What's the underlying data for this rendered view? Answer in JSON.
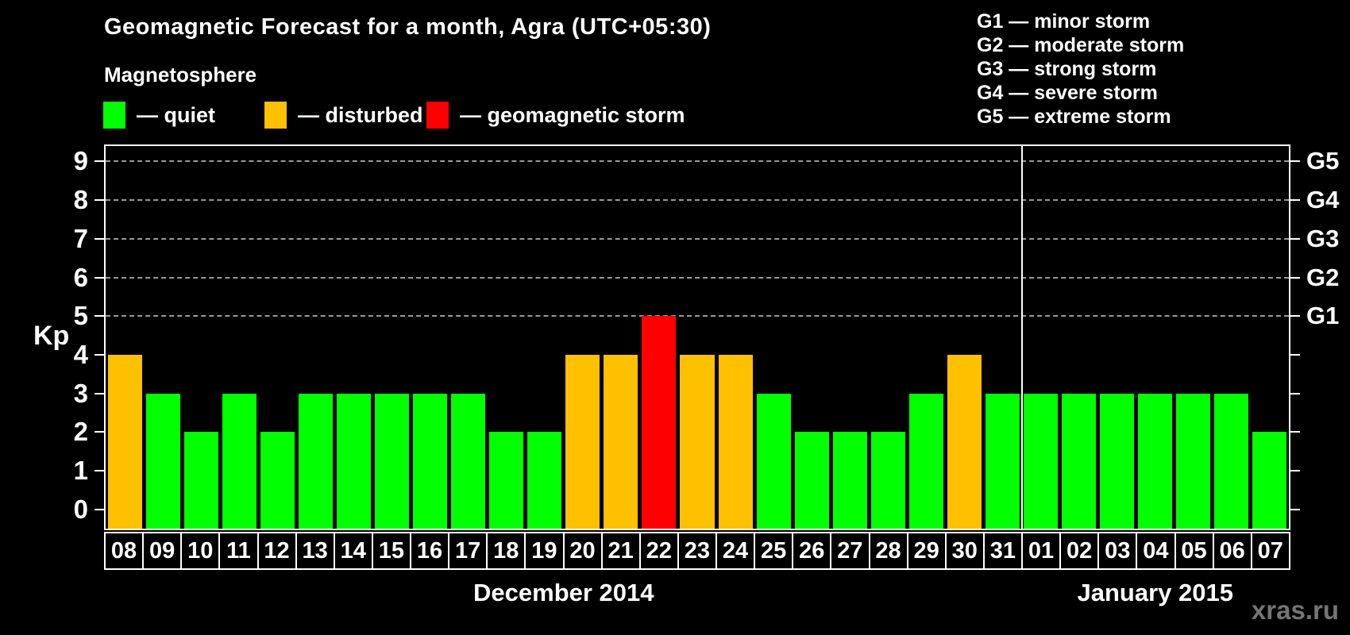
{
  "header": {
    "title": "Geomagnetic Forecast for a month, Agra (UTC+05:30)",
    "subtitle": "Magnetosphere"
  },
  "legend": {
    "items": [
      {
        "key": "quiet",
        "label": "— quiet",
        "color": "#00ff00"
      },
      {
        "key": "disturbed",
        "label": "— disturbed",
        "color": "#ffc000"
      },
      {
        "key": "storm",
        "label": "— geomagnetic storm",
        "color": "#ff0000"
      }
    ]
  },
  "storm_scale": [
    "G1 — minor storm",
    "G2 — moderate storm",
    "G3 — strong storm",
    "G4 — severe storm",
    "G5 — extreme storm"
  ],
  "watermark": "xras.ru",
  "chart_data": {
    "type": "bar",
    "ylabel": "Kp",
    "ylim": [
      -0.5,
      9.4
    ],
    "yticks": [
      0,
      1,
      2,
      3,
      4,
      5,
      6,
      7,
      8,
      9
    ],
    "gridlines_at": [
      5,
      6,
      7,
      8,
      9
    ],
    "grid_color": "#999999",
    "right_axis_labels": [
      {
        "label": "G1",
        "kp": 5
      },
      {
        "label": "G2",
        "kp": 6
      },
      {
        "label": "G3",
        "kp": 7
      },
      {
        "label": "G4",
        "kp": 8
      },
      {
        "label": "G5",
        "kp": 9
      }
    ],
    "categories": [
      "08",
      "09",
      "10",
      "11",
      "12",
      "13",
      "14",
      "15",
      "16",
      "17",
      "18",
      "19",
      "20",
      "21",
      "22",
      "23",
      "24",
      "25",
      "26",
      "27",
      "28",
      "29",
      "30",
      "31",
      "01",
      "02",
      "03",
      "04",
      "05",
      "06",
      "07"
    ],
    "values": [
      4,
      3,
      2,
      3,
      2,
      3,
      3,
      3,
      3,
      3,
      2,
      2,
      4,
      4,
      5,
      4,
      4,
      3,
      2,
      2,
      2,
      3,
      4,
      3,
      3,
      3,
      3,
      3,
      3,
      3,
      2
    ],
    "statuses": [
      "disturbed",
      "quiet",
      "quiet",
      "quiet",
      "quiet",
      "quiet",
      "quiet",
      "quiet",
      "quiet",
      "quiet",
      "quiet",
      "quiet",
      "disturbed",
      "disturbed",
      "storm",
      "disturbed",
      "disturbed",
      "quiet",
      "quiet",
      "quiet",
      "quiet",
      "quiet",
      "disturbed",
      "quiet",
      "quiet",
      "quiet",
      "quiet",
      "quiet",
      "quiet",
      "quiet",
      "quiet"
    ],
    "separator_after_index": 23,
    "month_sections": [
      {
        "label": "December 2014",
        "start": 0,
        "count": 24
      },
      {
        "label": "January 2015",
        "start": 24,
        "count": 7
      }
    ]
  }
}
